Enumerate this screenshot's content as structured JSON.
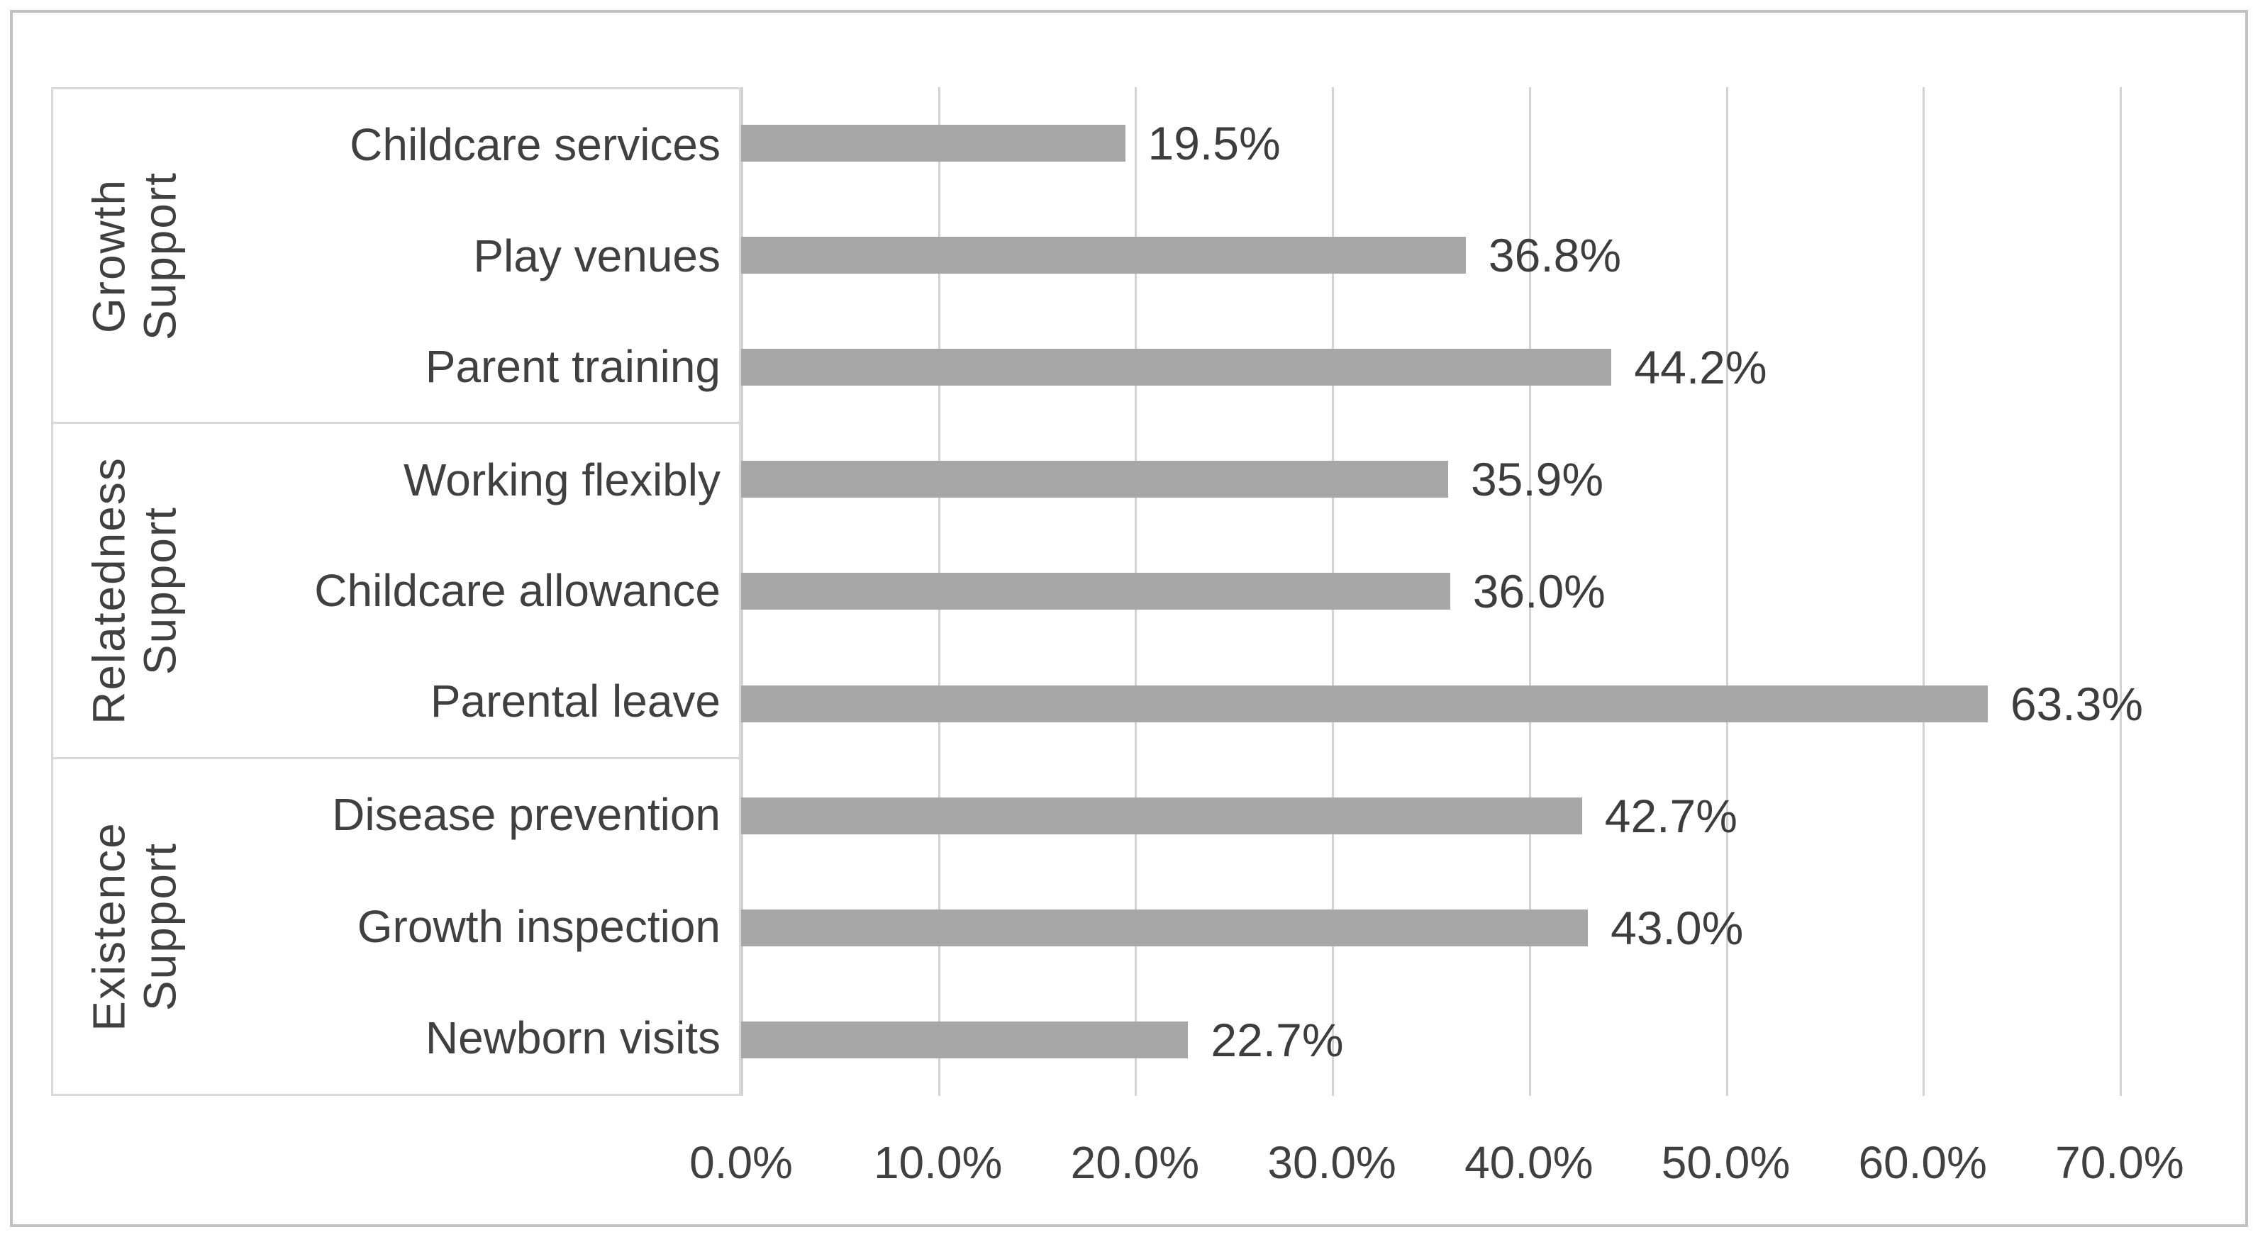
{
  "chart_data": {
    "type": "bar",
    "orientation": "horizontal",
    "title": "",
    "xlabel": "",
    "ylabel": "",
    "xlim": [
      0,
      70
    ],
    "x_tick_step": 10,
    "grid": true,
    "legend": "none",
    "x_axis_ticks": [
      "0.0%",
      "10.0%",
      "20.0%",
      "30.0%",
      "40.0%",
      "50.0%",
      "60.0%",
      "70.0%"
    ],
    "groups": [
      {
        "label": "Growth\nSupport",
        "items": [
          {
            "category": "Childcare services",
            "value": 19.5,
            "data_label": "19.5%"
          },
          {
            "category": "Play venues",
            "value": 36.8,
            "data_label": "36.8%"
          },
          {
            "category": "Parent training",
            "value": 44.2,
            "data_label": "44.2%"
          }
        ]
      },
      {
        "label": "Relatedness\nSupport",
        "items": [
          {
            "category": "Working flexibly",
            "value": 35.9,
            "data_label": "35.9%"
          },
          {
            "category": "Childcare allowance",
            "value": 36.0,
            "data_label": "36.0%"
          },
          {
            "category": "Parental leave",
            "value": 63.3,
            "data_label": "63.3%"
          }
        ]
      },
      {
        "label": "Existence\nSupport",
        "items": [
          {
            "category": "Disease prevention",
            "value": 42.7,
            "data_label": "42.7%"
          },
          {
            "category": "Growth inspection",
            "value": 43.0,
            "data_label": "43.0%"
          },
          {
            "category": "Newborn visits",
            "value": 22.7,
            "data_label": "22.7%"
          }
        ]
      }
    ],
    "colors": {
      "bar_fill": "#a7a7a7",
      "gridline": "#d3d3d3",
      "label_box_border": "#d9d9d9",
      "outer_border": "#c2c2c2",
      "text": "#404040",
      "background": "#ffffff"
    }
  }
}
